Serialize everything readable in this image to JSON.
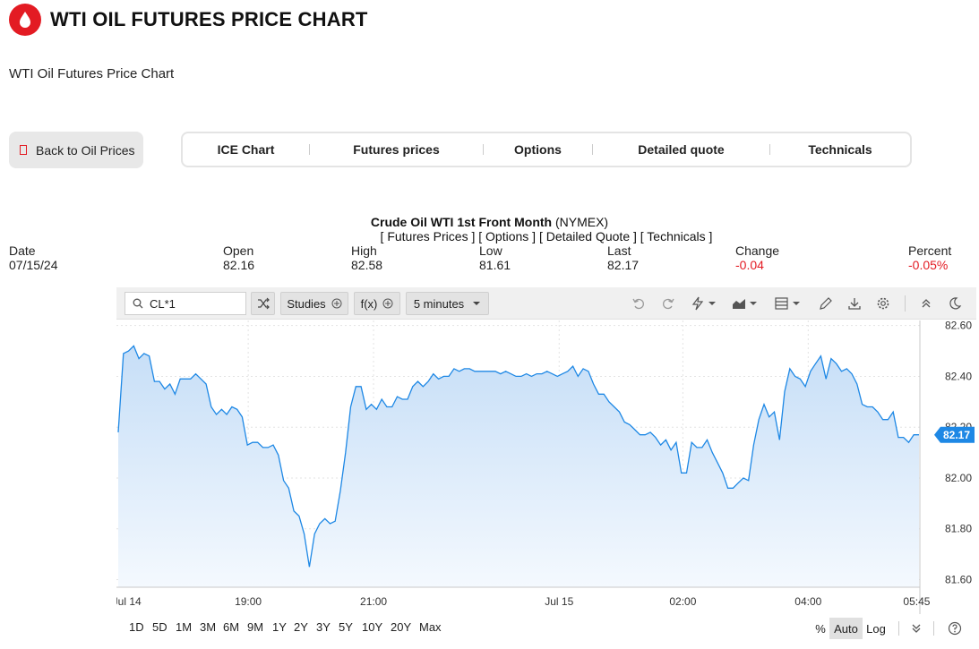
{
  "header": {
    "title": "WTI OIL FUTURES PRICE CHART",
    "logo_icon": "oil-drop-icon",
    "brand_color": "#e31b23"
  },
  "subtitle": "WTI Oil Futures Price Chart",
  "back_button": {
    "label": "Back to Oil Prices"
  },
  "tabs": [
    "ICE Chart",
    "Futures prices",
    "Options",
    "Detailed quote",
    "Technicals"
  ],
  "symbol": {
    "name": "Crude Oil WTI 1st Front Month",
    "exchange": "(NYMEX)",
    "links": "[ Futures Prices ] [ Options ] [ Detailed Quote ] [ Technicals ]"
  },
  "quote": {
    "date_label": "Date",
    "date": "07/15/24",
    "open_label": "Open",
    "open": "82.16",
    "high_label": "High",
    "high": "82.58",
    "low_label": "Low",
    "low": "81.61",
    "last_label": "Last",
    "last": "82.17",
    "change_label": "Change",
    "change": "-0.04",
    "percent_label": "Percent",
    "percent": "-0.05%"
  },
  "toolbar": {
    "search_value": "CL*1",
    "studies_label": "Studies",
    "fx_label": "f(x)",
    "interval_label": "5 minutes"
  },
  "ranges": [
    "1D",
    "5D",
    "1M",
    "3M",
    "6M",
    "9M",
    "1Y",
    "2Y",
    "3Y",
    "5Y",
    "10Y",
    "20Y",
    "Max"
  ],
  "scale": {
    "percent": "%",
    "auto": "Auto",
    "log": "Log"
  },
  "chart_data": {
    "type": "area",
    "series": [
      {
        "values": [
          82.18,
          82.49,
          82.5,
          82.52,
          82.47,
          82.49,
          82.48,
          82.38,
          82.38,
          82.35,
          82.37,
          82.33,
          82.39,
          82.39,
          82.39,
          82.41,
          82.39,
          82.37,
          82.28,
          82.25,
          82.27,
          82.25,
          82.28,
          82.27,
          82.24,
          82.13,
          82.14,
          82.14,
          82.12,
          82.12,
          82.13,
          82.09,
          81.99,
          81.96,
          81.87,
          81.85,
          81.78,
          81.65,
          81.78,
          81.82,
          81.84,
          81.82,
          81.83,
          81.95,
          82.1,
          82.28,
          82.36,
          82.36,
          82.27,
          82.29,
          82.27,
          82.31,
          82.28,
          82.28,
          82.32,
          82.31,
          82.31,
          82.36,
          82.38,
          82.36,
          82.38,
          82.41,
          82.39,
          82.4,
          82.4,
          82.43,
          82.42,
          82.43,
          82.43,
          82.42,
          82.42,
          82.42,
          82.42,
          82.42,
          82.41,
          82.42,
          82.41,
          82.4,
          82.4,
          82.41,
          82.4,
          82.41,
          82.41,
          82.42,
          82.41,
          82.4,
          82.41,
          82.42,
          82.44,
          82.4,
          82.43,
          82.42,
          82.37,
          82.33,
          82.33,
          82.3,
          82.28,
          82.26,
          82.22,
          82.21,
          82.19,
          82.17,
          82.17,
          82.18,
          82.16,
          82.13,
          82.15,
          82.11,
          82.14,
          82.02,
          82.02,
          82.14,
          82.12,
          82.12,
          82.15,
          82.1,
          82.06,
          82.02,
          81.96,
          81.96,
          81.98,
          82.0,
          81.99,
          82.13,
          82.23,
          82.29,
          82.24,
          82.26,
          82.15,
          82.34,
          82.43,
          82.4,
          82.39,
          82.36,
          82.42,
          82.45,
          82.48,
          82.39,
          82.47,
          82.45,
          82.42,
          82.43,
          82.41,
          82.37,
          82.29,
          82.28,
          82.28,
          82.26,
          82.23,
          82.23,
          82.26,
          82.16,
          82.16,
          82.14,
          82.17,
          82.17
        ]
      }
    ],
    "x_ticks": [
      "Jul 14",
      "19:00",
      "21:00",
      "Jul 15",
      "02:00",
      "04:00",
      "05:45"
    ],
    "y_ticks": [
      "81.60",
      "81.80",
      "82.00",
      "82.20",
      "82.40",
      "82.60"
    ],
    "ylim": [
      81.57,
      82.62
    ],
    "last_value": "82.17",
    "line_color": "#1e88e5",
    "fill_color": "#cfe4f9",
    "grid": true
  }
}
